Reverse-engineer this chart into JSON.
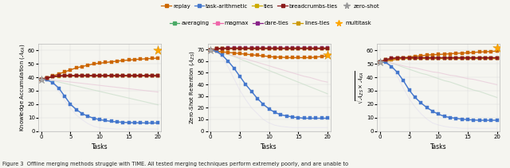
{
  "tasks": [
    0,
    1,
    2,
    3,
    4,
    5,
    6,
    7,
    8,
    9,
    10,
    11,
    12,
    13,
    14,
    15,
    16,
    17,
    18,
    19,
    20
  ],
  "methods": {
    "replay": {
      "color": "#cc6600",
      "marker": "s",
      "linewidth": 1.0,
      "markersize": 2.5,
      "alpha": 1.0,
      "zorder": 5,
      "ka": [
        38.5,
        39.5,
        41.0,
        42.5,
        44.0,
        45.5,
        47.0,
        48.0,
        49.0,
        50.0,
        50.5,
        51.0,
        51.5,
        52.0,
        52.5,
        52.8,
        53.2,
        53.5,
        53.8,
        54.0,
        54.3
      ],
      "zsr": [
        69.5,
        68.5,
        68.0,
        67.5,
        67.0,
        66.5,
        66.0,
        65.5,
        65.0,
        64.5,
        64.0,
        63.5,
        63.5,
        63.0,
        63.0,
        63.0,
        63.0,
        63.0,
        63.5,
        64.0,
        64.5
      ],
      "geo": [
        51.5,
        52.0,
        52.8,
        53.5,
        54.3,
        55.0,
        55.5,
        56.0,
        56.5,
        56.8,
        57.0,
        57.2,
        57.5,
        57.8,
        58.0,
        58.2,
        58.5,
        58.8,
        59.0,
        59.2,
        59.5
      ]
    },
    "task_arithmetic": {
      "color": "#4477cc",
      "marker": "s",
      "linewidth": 1.0,
      "markersize": 2.5,
      "alpha": 1.0,
      "zorder": 5,
      "ka": [
        38.5,
        38.0,
        36.0,
        32.0,
        26.0,
        20.0,
        16.0,
        13.0,
        11.0,
        9.5,
        8.5,
        7.8,
        7.2,
        6.8,
        6.5,
        6.3,
        6.2,
        6.1,
        6.0,
        6.0,
        6.0
      ],
      "zsr": [
        69.5,
        68.5,
        65.0,
        60.0,
        54.0,
        47.0,
        40.0,
        34.0,
        28.0,
        23.0,
        19.0,
        16.0,
        14.0,
        13.0,
        12.0,
        11.5,
        11.0,
        11.0,
        11.0,
        11.0,
        11.0
      ],
      "geo": [
        51.5,
        51.0,
        48.0,
        43.5,
        37.5,
        30.5,
        25.0,
        21.0,
        17.5,
        14.8,
        12.5,
        11.0,
        10.0,
        9.5,
        8.8,
        8.5,
        8.2,
        8.0,
        8.0,
        8.0,
        8.0
      ]
    },
    "ties": {
      "color": "#ccaa00",
      "marker": "s",
      "linewidth": 1.0,
      "markersize": 2.5,
      "alpha": 1.0,
      "zorder": 5,
      "ka": [
        38.5,
        39.5,
        40.5,
        40.8,
        41.0,
        41.0,
        41.0,
        41.0,
        41.0,
        41.0,
        41.0,
        41.0,
        41.0,
        41.0,
        41.0,
        41.0,
        41.0,
        41.0,
        41.0,
        41.0,
        41.0
      ],
      "zsr": [
        69.5,
        70.5,
        71.0,
        71.0,
        71.0,
        71.0,
        71.0,
        71.0,
        71.0,
        71.0,
        71.0,
        71.0,
        71.0,
        71.0,
        71.0,
        71.0,
        71.0,
        71.0,
        71.0,
        71.0,
        71.0
      ],
      "geo": [
        51.5,
        53.0,
        53.8,
        54.0,
        54.0,
        54.0,
        54.0,
        54.0,
        54.0,
        54.0,
        54.0,
        54.0,
        54.0,
        54.0,
        54.0,
        54.0,
        54.0,
        54.0,
        54.0,
        54.0,
        54.0
      ]
    },
    "breadcrumbs_ties": {
      "color": "#8b1a1a",
      "marker": "s",
      "linewidth": 1.2,
      "markersize": 2.5,
      "alpha": 1.0,
      "zorder": 6,
      "ka": [
        38.5,
        39.5,
        40.5,
        41.0,
        41.2,
        41.3,
        41.3,
        41.3,
        41.3,
        41.3,
        41.3,
        41.3,
        41.3,
        41.3,
        41.3,
        41.3,
        41.3,
        41.3,
        41.3,
        41.3,
        41.3
      ],
      "zsr": [
        69.5,
        70.5,
        71.0,
        71.0,
        71.0,
        71.0,
        71.0,
        71.0,
        71.0,
        71.0,
        71.0,
        71.0,
        71.0,
        71.0,
        71.0,
        71.0,
        71.0,
        71.0,
        71.0,
        71.0,
        71.0
      ],
      "geo": [
        51.5,
        53.0,
        54.0,
        54.5,
        54.5,
        54.5,
        54.5,
        54.5,
        54.5,
        54.5,
        54.5,
        54.5,
        54.5,
        54.5,
        54.5,
        54.5,
        54.5,
        54.5,
        54.5,
        54.5,
        54.5
      ]
    },
    "dare_ties": {
      "color": "#882288",
      "marker": "s",
      "linewidth": 1.0,
      "markersize": 2.5,
      "alpha": 1.0,
      "zorder": 5,
      "ka": [
        38.5,
        39.5,
        40.5,
        41.0,
        41.0,
        41.0,
        41.0,
        41.0,
        41.0,
        41.0,
        41.0,
        41.0,
        41.0,
        41.0,
        41.0,
        41.0,
        41.0,
        41.0,
        41.0,
        41.0,
        41.0
      ],
      "zsr": [
        69.5,
        70.5,
        71.0,
        71.2,
        71.2,
        71.2,
        71.2,
        71.2,
        71.2,
        71.2,
        71.2,
        71.2,
        71.2,
        71.2,
        71.2,
        71.2,
        71.2,
        71.2,
        71.2,
        71.2,
        71.2
      ],
      "geo": [
        51.5,
        53.0,
        54.0,
        54.2,
        54.2,
        54.2,
        54.2,
        54.2,
        54.2,
        54.2,
        54.2,
        54.2,
        54.2,
        54.2,
        54.2,
        54.2,
        54.2,
        54.2,
        54.2,
        54.2,
        54.2
      ]
    },
    "linesties": {
      "color": "#cc9900",
      "marker": "s",
      "linewidth": 1.0,
      "markersize": 2.5,
      "alpha": 1.0,
      "zorder": 5,
      "ka": [
        38.5,
        39.5,
        40.5,
        41.0,
        41.0,
        41.0,
        41.0,
        41.0,
        41.0,
        41.0,
        41.0,
        41.0,
        41.0,
        41.0,
        41.0,
        41.0,
        41.0,
        41.0,
        41.0,
        41.0,
        41.0
      ],
      "zsr": [
        69.5,
        70.5,
        71.0,
        71.0,
        71.0,
        71.0,
        71.0,
        71.0,
        71.0,
        71.0,
        71.0,
        71.0,
        71.0,
        71.0,
        71.0,
        71.0,
        71.0,
        71.0,
        71.0,
        71.0,
        71.0
      ],
      "geo": [
        51.5,
        53.0,
        53.8,
        54.0,
        54.0,
        54.0,
        54.0,
        54.0,
        54.0,
        54.0,
        54.0,
        54.0,
        54.0,
        54.0,
        54.0,
        54.0,
        54.0,
        54.0,
        54.0,
        54.0,
        54.0
      ]
    }
  },
  "faded_methods": {
    "averaging": {
      "color": "#c8ddc8",
      "linewidth": 0.8,
      "alpha": 0.7,
      "zorder": 2,
      "ka": [
        38.5,
        38.5,
        37.5,
        36.5,
        35.5,
        34.5,
        33.5,
        32.5,
        31.5,
        30.5,
        29.5,
        28.5,
        27.5,
        26.5,
        25.5,
        24.5,
        23.5,
        22.5,
        21.5,
        20.5,
        19.5
      ],
      "zsr": [
        69.5,
        68.5,
        67.0,
        65.5,
        64.0,
        62.0,
        60.0,
        58.0,
        56.0,
        54.0,
        52.0,
        50.0,
        48.0,
        46.0,
        44.0,
        42.0,
        40.0,
        38.0,
        36.0,
        34.0,
        32.0
      ],
      "geo": [
        51.5,
        51.5,
        50.5,
        49.0,
        47.5,
        46.0,
        44.5,
        43.0,
        42.0,
        40.5,
        39.0,
        37.5,
        36.5,
        35.0,
        33.5,
        32.0,
        30.5,
        29.5,
        28.0,
        26.5,
        25.0
      ]
    },
    "magmax": {
      "color": "#e8c8d8",
      "linewidth": 0.8,
      "alpha": 0.7,
      "zorder": 2,
      "ka": [
        38.5,
        38.5,
        38.0,
        37.5,
        37.0,
        36.5,
        36.0,
        35.5,
        35.0,
        34.5,
        34.0,
        33.5,
        33.0,
        32.5,
        32.0,
        31.5,
        31.0,
        30.5,
        30.0,
        29.5,
        29.0
      ],
      "zsr": [
        69.5,
        69.0,
        67.5,
        66.0,
        64.5,
        63.0,
        62.0,
        60.5,
        59.0,
        57.5,
        56.0,
        54.5,
        53.0,
        51.5,
        50.0,
        48.5,
        47.0,
        46.0,
        44.5,
        43.0,
        42.0
      ],
      "geo": [
        51.5,
        51.5,
        50.5,
        49.5,
        48.5,
        47.5,
        47.0,
        46.0,
        45.0,
        44.0,
        43.5,
        42.5,
        41.5,
        41.0,
        40.0,
        39.0,
        38.5,
        37.5,
        36.5,
        35.5,
        34.5
      ]
    },
    "task_arith_ghost": {
      "color": "#c0ccee",
      "linewidth": 0.8,
      "alpha": 0.7,
      "zorder": 2,
      "ka": [
        38.5,
        38.0,
        36.0,
        32.0,
        26.0,
        20.0,
        16.0,
        13.0,
        11.0,
        9.5,
        8.5,
        7.8,
        7.2,
        6.8,
        6.5,
        6.3,
        6.2,
        6.1,
        6.0,
        6.0,
        6.0
      ],
      "zsr": [
        69.5,
        68.5,
        65.0,
        60.0,
        54.0,
        47.0,
        40.0,
        34.0,
        28.0,
        23.0,
        19.0,
        16.0,
        14.0,
        13.0,
        12.0,
        11.5,
        11.0,
        11.0,
        11.0,
        11.0,
        11.0
      ],
      "geo": [
        51.5,
        51.0,
        48.0,
        43.5,
        37.5,
        30.5,
        25.0,
        21.0,
        17.5,
        14.8,
        12.5,
        11.0,
        10.0,
        9.5,
        8.8,
        8.5,
        8.2,
        8.0,
        8.0,
        8.0,
        8.0
      ]
    },
    "extra_ghost1": {
      "color": "#ddd8ee",
      "linewidth": 0.7,
      "alpha": 0.5,
      "zorder": 1,
      "ka": [
        38.5,
        38.0,
        36.0,
        30.0,
        23.0,
        17.0,
        12.0,
        8.5,
        5.5,
        3.5,
        2.5,
        2.0,
        1.8,
        1.5,
        1.5,
        1.5,
        1.5,
        1.5,
        1.5,
        1.5,
        1.5
      ],
      "zsr": [
        69.5,
        68.0,
        63.0,
        55.0,
        45.0,
        35.0,
        27.0,
        20.0,
        15.0,
        10.0,
        7.0,
        5.0,
        4.0,
        3.5,
        3.0,
        3.0,
        3.0,
        3.0,
        3.0,
        3.0,
        3.0
      ],
      "geo": [
        51.5,
        50.5,
        47.0,
        40.5,
        32.0,
        24.0,
        18.0,
        13.0,
        9.0,
        6.0,
        4.5,
        3.5,
        2.8,
        2.5,
        2.0,
        2.0,
        2.0,
        2.0,
        2.0,
        2.0,
        2.0
      ]
    }
  },
  "zeroshot": {
    "ka": 38.5,
    "zsr": 69.5,
    "geo": 51.5
  },
  "multitask": {
    "ka": 60,
    "zsr": 65,
    "geo": 62
  },
  "bg_color": "#f5f5f0",
  "figure_caption": "Figure 3  Offline merging methods struggle with TIME. All tested merging techniques perform extremely poorly, and are unable to",
  "ylabel1": "Knowledge Accumulation ($\\mathcal{A}_{KA}$)",
  "ylabel2": "Zero-Shot Retention ($\\mathcal{A}_{ZS}$)",
  "ylabel3": "$\\sqrt{\\mathcal{A}_{ZS} \\times \\mathcal{A}_{KA}}$",
  "xlabel": "Tasks",
  "ylim1": [
    0,
    65
  ],
  "ylim2": [
    0,
    75
  ],
  "ylim3": [
    0,
    65
  ],
  "yticks1": [
    0,
    10,
    20,
    30,
    40,
    50,
    60
  ],
  "yticks2": [
    0,
    10,
    20,
    30,
    40,
    50,
    60,
    70
  ],
  "yticks3": [
    0,
    10,
    20,
    30,
    40,
    50,
    60
  ],
  "xticks": [
    0,
    5,
    10,
    15,
    20
  ],
  "legend_row1": [
    {
      "label": "replay",
      "color": "#cc6600",
      "marker": "s",
      "linestyle": "-"
    },
    {
      "label": "task-arithmetic",
      "color": "#4477cc",
      "marker": "s",
      "linestyle": "-"
    },
    {
      "label": "ties",
      "color": "#ccaa00",
      "marker": "s",
      "linestyle": "-"
    },
    {
      "label": "breadcrumbs-ties",
      "color": "#8b1a1a",
      "marker": "s",
      "linestyle": "-"
    },
    {
      "label": "zero-shot",
      "color": "#999999",
      "marker": "*",
      "linestyle": "none"
    }
  ],
  "legend_row2": [
    {
      "label": "averaging",
      "color": "#4aaa66",
      "marker": "s",
      "linestyle": "-"
    },
    {
      "label": "magmax",
      "color": "#ee66aa",
      "marker": "s",
      "linestyle": "-"
    },
    {
      "label": "dare-ties",
      "color": "#882288",
      "marker": "s",
      "linestyle": "-"
    },
    {
      "label": "lines-ties",
      "color": "#cc9900",
      "marker": "s",
      "linestyle": "-"
    },
    {
      "label": "multitask",
      "color": "#FFA500",
      "marker": "*",
      "linestyle": "none"
    }
  ]
}
